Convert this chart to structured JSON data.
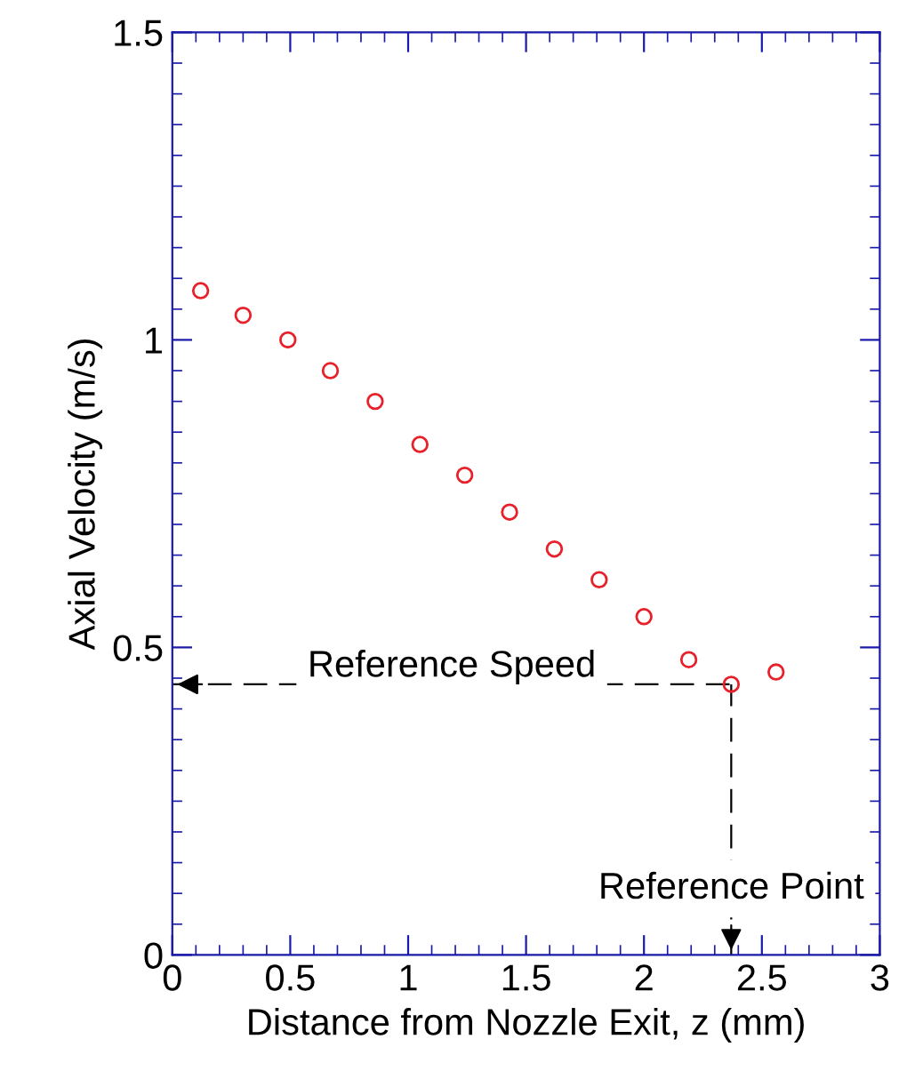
{
  "chart_data": {
    "type": "scatter",
    "xlabel": "Distance from Nozzle Exit, z (mm)",
    "ylabel": "Axial Velocity (m/s)",
    "x": [
      0.12,
      0.3,
      0.49,
      0.67,
      0.86,
      1.05,
      1.24,
      1.43,
      1.62,
      1.81,
      2.0,
      2.19,
      2.37,
      2.56
    ],
    "series": [
      {
        "color": "#e8202a",
        "values": [
          1.08,
          1.04,
          1.0,
          0.95,
          0.9,
          0.83,
          0.78,
          0.72,
          0.66,
          0.61,
          0.55,
          0.48,
          0.44,
          0.46
        ]
      }
    ],
    "marker": "circle",
    "xlim": [
      0,
      3
    ],
    "ylim": [
      0,
      1.5
    ],
    "xticks": [
      0,
      0.5,
      1,
      1.5,
      2,
      2.5,
      3
    ],
    "yticks": [
      0,
      0.5,
      1,
      1.5
    ],
    "grid": false,
    "ref_lines": [
      {
        "axis": "y",
        "value": 0.44,
        "label": "Reference Speed",
        "line_style": "dashed"
      },
      {
        "axis": "x",
        "value": 2.37,
        "label": "Reference Point",
        "line_style": "dashed"
      }
    ]
  }
}
